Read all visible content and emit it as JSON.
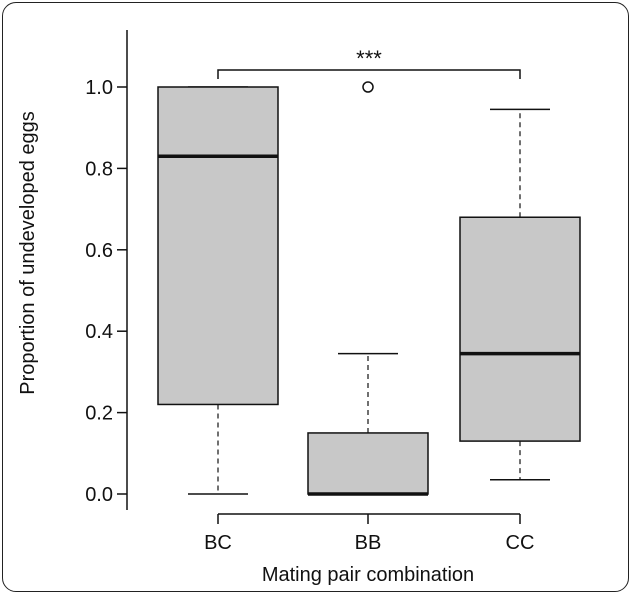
{
  "chart_data": {
    "type": "box",
    "xlabel": "Mating pair combination",
    "ylabel": "Proportion of undeveloped eggs",
    "categories": [
      "BC",
      "BB",
      "CC"
    ],
    "ylim": [
      0,
      1.1
    ],
    "yticks": [
      0.0,
      0.2,
      0.4,
      0.6,
      0.8,
      1.0
    ],
    "ytick_labels": [
      "0.0",
      "0.2",
      "0.4",
      "0.6",
      "0.8",
      "1.0"
    ],
    "boxes": [
      {
        "category": "BC",
        "whisker_low": 0.0,
        "q1": 0.22,
        "median": 0.83,
        "q3": 1.0,
        "whisker_high": 1.0,
        "outliers": []
      },
      {
        "category": "BB",
        "whisker_low": 0.0,
        "q1": 0.0,
        "median": 0.0,
        "q3": 0.15,
        "whisker_high": 0.345,
        "outliers": [
          1.0
        ]
      },
      {
        "category": "CC",
        "whisker_low": 0.035,
        "q1": 0.13,
        "median": 0.345,
        "q3": 0.68,
        "whisker_high": 0.945,
        "outliers": []
      }
    ],
    "significance": {
      "from": "BC",
      "to": "CC",
      "label": "***",
      "y": 1.04
    },
    "box_fill": "#c8c8c8",
    "line_color": "#111111",
    "grid": false
  }
}
